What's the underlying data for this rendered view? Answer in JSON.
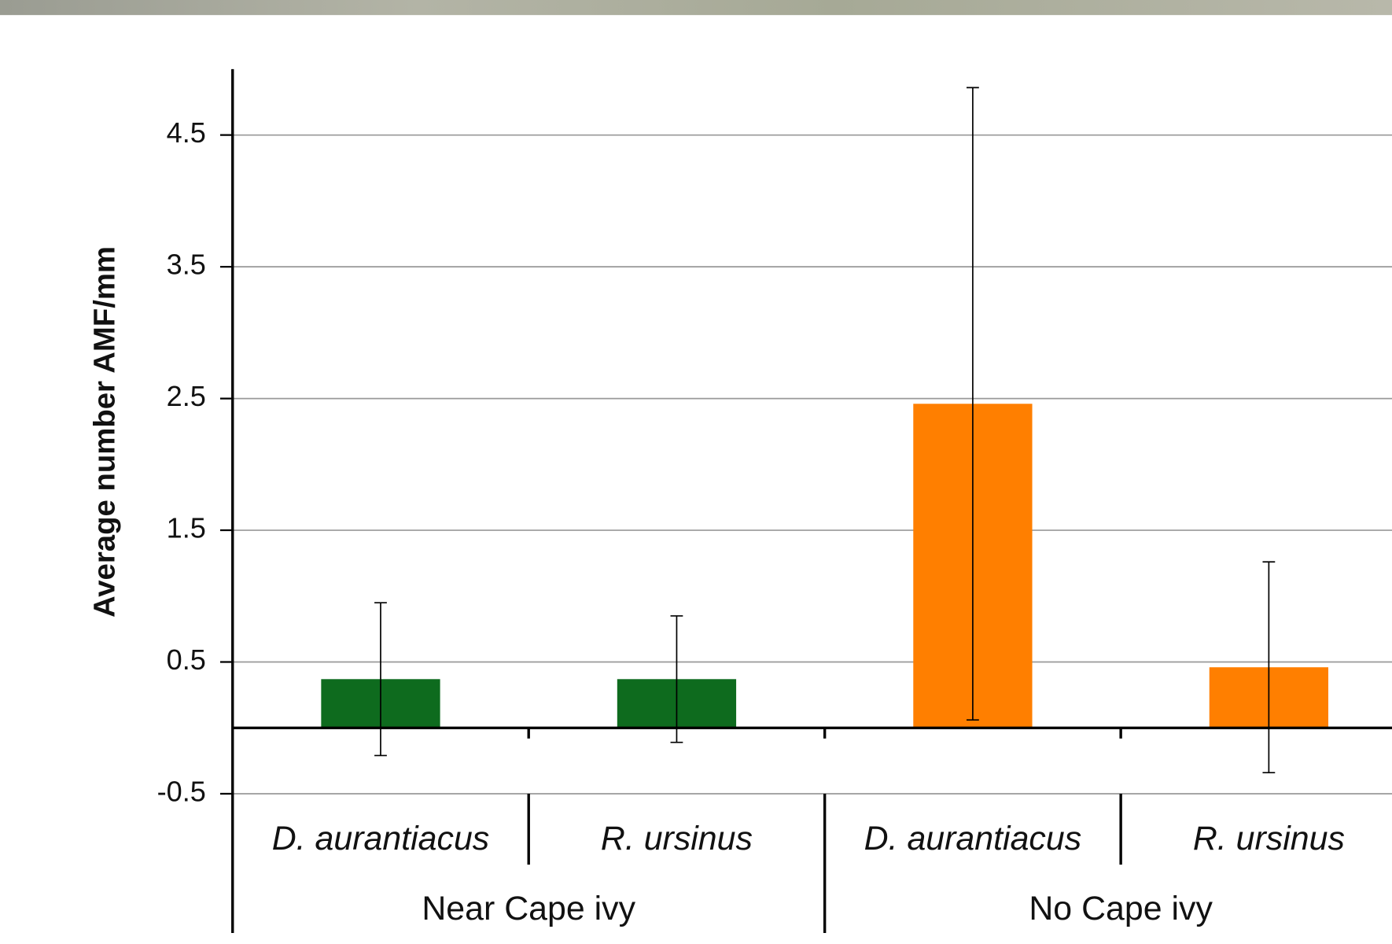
{
  "chart_data": {
    "type": "bar",
    "y_label": "Average number AMF/mm",
    "groups": [
      {
        "name": "Near Cape ivy",
        "color": "#0e6b1e",
        "categories": [
          "D. aurantiacus",
          "R. ursinus"
        ],
        "values": [
          0.37,
          0.37
        ],
        "errors": [
          0.58,
          0.48
        ]
      },
      {
        "name": "No Cape ivy",
        "color": "#ff7f00",
        "categories": [
          "D. aurantiacus",
          "R. ursinus"
        ],
        "values": [
          2.46,
          0.46
        ],
        "errors": [
          2.4,
          0.8
        ]
      }
    ],
    "ylim": [
      -0.5,
      5
    ],
    "yticks": [
      -0.5,
      0.5,
      1.5,
      2.5,
      3.5,
      4.5
    ],
    "grid": true
  }
}
